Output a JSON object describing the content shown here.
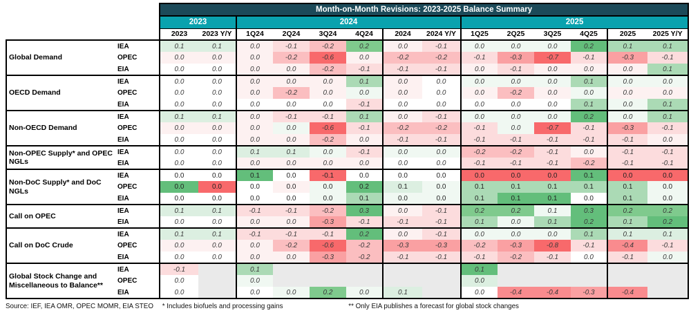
{
  "chart_data": {
    "type": "table",
    "title": "Month-on-Month Revisions: 2023-2025 Balance Summary",
    "year_groups": [
      {
        "label": "2023",
        "span": 2
      },
      {
        "label": "2024",
        "span": 6
      },
      {
        "label": "2025",
        "span": 6
      }
    ],
    "columns": [
      "2023",
      "2023 Y/Y",
      "1Q24",
      "2Q24",
      "3Q24",
      "4Q24",
      "2024",
      "2024 Y/Y",
      "1Q25",
      "2Q25",
      "3Q25",
      "4Q25",
      "2025",
      "2025 Y/Y"
    ],
    "groups": [
      {
        "label": "Global Demand",
        "italic": true,
        "rows": [
          {
            "agency": "IEA",
            "values": [
              "0.1",
              "0.1",
              "0.0",
              "-0.1",
              "-0.2",
              "0.2",
              "0.0",
              "-0.1",
              "0.0",
              "0.0",
              "0.0",
              "0.2",
              "0.1",
              "0.1"
            ],
            "colors": [
              "G1",
              "G1",
              "R0",
              "R1",
              "R2",
              "G3",
              "R0",
              "R1",
              "G0",
              "G0",
              "G0",
              "G4",
              "G2",
              "G2"
            ]
          },
          {
            "agency": "OPEC",
            "values": [
              "0.0",
              "0.0",
              "0.0",
              "-0.2",
              "-0.6",
              "0.0",
              "-0.2",
              "-0.2",
              "-0.1",
              "-0.3",
              "-0.7",
              "-0.1",
              "-0.3",
              "-0.1"
            ],
            "colors": [
              "R0",
              "R0",
              "R0",
              "R2",
              "R5",
              "R0",
              "R2",
              "R2",
              "R1",
              "R3",
              "R5",
              "R1",
              "R3",
              "R1"
            ]
          },
          {
            "agency": "EIA",
            "values": [
              "0.0",
              "0.0",
              "0.0",
              "0.0",
              "-0.2",
              "-0.1",
              "-0.1",
              "-0.1",
              "0.0",
              "-0.1",
              "0.0",
              "0.0",
              "0.0",
              "0.1"
            ],
            "colors": [
              "W",
              "W",
              "R0",
              "R0",
              "R2",
              "R1",
              "R1",
              "R1",
              "R0",
              "R1",
              "R0",
              "R0",
              "R0",
              "G2"
            ]
          }
        ]
      },
      {
        "label": "OECD Demand",
        "italic": true,
        "rows": [
          {
            "agency": "IEA",
            "values": [
              "0.0",
              "0.0",
              "0.0",
              "0.0",
              "0.0",
              "0.1",
              "0.0",
              "0.0",
              "0.0",
              "0.0",
              "0.0",
              "0.1",
              "0.0",
              "0.0"
            ],
            "colors": [
              "W",
              "W",
              "R0",
              "R0",
              "R0",
              "G2",
              "R0",
              "W",
              "G0",
              "G0",
              "G0",
              "G2",
              "G0",
              "G0"
            ]
          },
          {
            "agency": "OPEC",
            "values": [
              "0.0",
              "0.0",
              "0.0",
              "-0.2",
              "0.0",
              "0.0",
              "0.0",
              "0.0",
              "0.0",
              "-0.2",
              "0.0",
              "0.0",
              "0.0",
              "0.0"
            ],
            "colors": [
              "W",
              "W",
              "R0",
              "R2",
              "R0",
              "G0",
              "R0",
              "W",
              "R0",
              "R2",
              "R0",
              "G0",
              "R0",
              "R0"
            ]
          },
          {
            "agency": "EIA",
            "values": [
              "0.0",
              "0.0",
              "0.0",
              "0.0",
              "0.0",
              "-0.1",
              "0.0",
              "0.0",
              "0.0",
              "0.0",
              "0.0",
              "0.1",
              "0.0",
              "0.1"
            ],
            "colors": [
              "W",
              "W",
              "W",
              "W",
              "W",
              "R1",
              "W",
              "W",
              "W",
              "W",
              "W",
              "G2",
              "G0",
              "G2"
            ]
          }
        ]
      },
      {
        "label": "Non-OECD Demand",
        "italic": true,
        "rows": [
          {
            "agency": "IEA",
            "values": [
              "0.1",
              "0.1",
              "0.0",
              "-0.1",
              "-0.1",
              "0.1",
              "0.0",
              "-0.1",
              "0.0",
              "0.0",
              "0.0",
              "0.2",
              "0.0",
              "0.1"
            ],
            "colors": [
              "G1",
              "G1",
              "R0",
              "R1",
              "R1",
              "G2",
              "R0",
              "R1",
              "G0",
              "G0",
              "G0",
              "G4",
              "G0",
              "G2"
            ]
          },
          {
            "agency": "OPEC",
            "values": [
              "0.0",
              "0.0",
              "0.0",
              "0.0",
              "-0.6",
              "-0.1",
              "-0.2",
              "-0.2",
              "-0.1",
              "0.0",
              "-0.7",
              "-0.1",
              "-0.3",
              "-0.1"
            ],
            "colors": [
              "R0",
              "R0",
              "R0",
              "G0",
              "R5",
              "R1",
              "R2",
              "R2",
              "R1",
              "G0",
              "R5",
              "R1",
              "R3",
              "R1"
            ]
          },
          {
            "agency": "EIA",
            "values": [
              "0.0",
              "0.0",
              "0.0",
              "0.0",
              "-0.2",
              "0.0",
              "-0.1",
              "-0.1",
              "-0.1",
              "-0.1",
              "-0.1",
              "-0.1",
              "-0.1",
              "0.0"
            ],
            "colors": [
              "W",
              "W",
              "R0",
              "R0",
              "R2",
              "R0",
              "R1",
              "R1",
              "R1",
              "R1",
              "R1",
              "R1",
              "R1",
              "R0"
            ]
          }
        ]
      },
      {
        "label": "Non-OPEC Supply* and OPEC NGLs",
        "italic": true,
        "rows": [
          {
            "agency": "IEA",
            "values": [
              "0.0",
              "0.0",
              "0.1",
              "0.1",
              "0.0",
              "-0.1",
              "0.0",
              "0.0",
              "-0.2",
              "-0.2",
              "-0.1",
              "0.0",
              "-0.1",
              "-0.1"
            ],
            "colors": [
              "W",
              "W",
              "G1",
              "G1",
              "G0",
              "R1",
              "G0",
              "G0",
              "R2",
              "R2",
              "R1",
              "R0",
              "R1",
              "R1"
            ]
          },
          {
            "agency": "EIA",
            "values": [
              "0.0",
              "0.0",
              "0.0",
              "0.0",
              "0.0",
              "0.0",
              "0.0",
              "0.0",
              "-0.1",
              "-0.1",
              "-0.1",
              "-0.2",
              "-0.1",
              "-0.1"
            ],
            "colors": [
              "W",
              "W",
              "R0",
              "R0",
              "R0",
              "R0",
              "W",
              "W",
              "R1",
              "R1",
              "R1",
              "R2",
              "R1",
              "R1"
            ]
          }
        ]
      },
      {
        "label": "Non-DoC Supply* and DoC NGLs",
        "italic": false,
        "rows": [
          {
            "agency": "IEA",
            "values": [
              "0.0",
              "0.0",
              "0.1",
              "0.0",
              "-0.1",
              "0.0",
              "0.0",
              "0.0",
              "0.0",
              "0.0",
              "0.0",
              "0.1",
              "0.0",
              "0.0"
            ],
            "colors": [
              "W",
              "W",
              "G4",
              "W",
              "R5",
              "W",
              "W",
              "W",
              "R5",
              "R5",
              "R5",
              "G4",
              "R5",
              "R5"
            ]
          },
          {
            "agency": "OPEC",
            "values": [
              "0.0",
              "0.0",
              "0.0",
              "0.0",
              "0.0",
              "0.2",
              "0.1",
              "0.0",
              "0.1",
              "0.1",
              "0.1",
              "0.1",
              "0.1",
              "0.0"
            ],
            "colors": [
              "G4",
              "R5",
              "W",
              "R0",
              "G0",
              "G4",
              "G1",
              "G0",
              "G2",
              "G2",
              "G2",
              "G2",
              "G2",
              "G0"
            ]
          },
          {
            "agency": "EIA",
            "values": [
              "0.0",
              "0.0",
              "0.0",
              "0.0",
              "0.0",
              "0.1",
              "0.0",
              "0.0",
              "0.1",
              "0.1",
              "0.1",
              "0.0",
              "0.1",
              "0.0"
            ],
            "colors": [
              "W",
              "W",
              "W",
              "W",
              "G0",
              "G2",
              "G0",
              "G0",
              "G2",
              "G4",
              "G4",
              "W",
              "G2",
              "G0"
            ]
          }
        ]
      },
      {
        "label": "Call on OPEC",
        "italic": true,
        "rows": [
          {
            "agency": "IEA",
            "values": [
              "0.1",
              "0.1",
              "-0.1",
              "-0.1",
              "-0.2",
              "0.3",
              "0.0",
              "-0.1",
              "0.2",
              "0.2",
              "0.1",
              "0.3",
              "0.2",
              "0.2"
            ],
            "colors": [
              "G1",
              "G1",
              "R1",
              "R1",
              "R2",
              "G4",
              "R0",
              "R1",
              "G3",
              "G3",
              "G0",
              "G4",
              "G3",
              "G3"
            ]
          },
          {
            "agency": "EIA",
            "values": [
              "0.0",
              "0.0",
              "0.0",
              "0.0",
              "-0.3",
              "-0.1",
              "-0.1",
              "-0.1",
              "0.1",
              "0.0",
              "0.1",
              "0.2",
              "0.1",
              "0.2"
            ],
            "colors": [
              "W",
              "W",
              "R0",
              "R0",
              "R3",
              "R1",
              "R1",
              "R1",
              "G2",
              "G0",
              "G2",
              "G4",
              "G2",
              "G4"
            ]
          }
        ]
      },
      {
        "label": "Call on DoC Crude",
        "italic": true,
        "rows": [
          {
            "agency": "IEA",
            "values": [
              "0.1",
              "0.1",
              "-0.1",
              "-0.1",
              "-0.1",
              "0.2",
              "0.0",
              "-0.1",
              "0.0",
              "0.0",
              "0.0",
              "0.1",
              "0.1",
              "0.1"
            ],
            "colors": [
              "G1",
              "G1",
              "R1",
              "R1",
              "R1",
              "G4",
              "R0",
              "R1",
              "G0",
              "G0",
              "G0",
              "G2",
              "G1",
              "G1"
            ]
          },
          {
            "agency": "OPEC",
            "values": [
              "0.0",
              "0.0",
              "0.0",
              "-0.2",
              "-0.6",
              "-0.2",
              "-0.3",
              "-0.3",
              "-0.2",
              "-0.3",
              "-0.8",
              "-0.1",
              "-0.4",
              "-0.1"
            ],
            "colors": [
              "R0",
              "R0",
              "R0",
              "R2",
              "R5",
              "R2",
              "R3",
              "R3",
              "R2",
              "R3",
              "R5",
              "R1",
              "R4",
              "R1"
            ]
          },
          {
            "agency": "EIA",
            "values": [
              "0.0",
              "0.0",
              "0.0",
              "0.0",
              "-0.3",
              "-0.2",
              "-0.1",
              "-0.1",
              "-0.1",
              "-0.2",
              "-0.1",
              "0.0",
              "-0.1",
              "0.0"
            ],
            "colors": [
              "W",
              "W",
              "R0",
              "R0",
              "R3",
              "R2",
              "R1",
              "R1",
              "R1",
              "R2",
              "R1",
              "W",
              "R1",
              "G0"
            ]
          }
        ]
      },
      {
        "label": "Global Stock Change and Miscellaneous to Balance**",
        "italic": true,
        "rows": [
          {
            "agency": "IEA",
            "values": [
              "-0.1",
              "",
              "0.1",
              "",
              "",
              "",
              "",
              "",
              "0.1",
              "",
              "",
              "",
              "",
              ""
            ],
            "colors": [
              "R1",
              "X",
              "G2",
              "X",
              "X",
              "X",
              "X",
              "X",
              "G4",
              "X",
              "X",
              "X",
              "X",
              "X"
            ]
          },
          {
            "agency": "OPEC",
            "values": [
              "0.0",
              "",
              "0.0",
              "",
              "",
              "",
              "",
              "",
              "0.0",
              "",
              "",
              "",
              "",
              ""
            ],
            "colors": [
              "W",
              "X",
              "G0",
              "X",
              "X",
              "X",
              "X",
              "X",
              "G1",
              "X",
              "X",
              "X",
              "X",
              "X"
            ]
          },
          {
            "agency": "EIA",
            "values": [
              "0.0",
              "",
              "0.0",
              "0.0",
              "0.2",
              "0.0",
              "0.1",
              "",
              "0.0",
              "-0.4",
              "-0.4",
              "-0.3",
              "-0.4",
              ""
            ],
            "colors": [
              "W",
              "X",
              "W",
              "G0",
              "G3",
              "G0",
              "G1",
              "X",
              "W",
              "R4",
              "R4",
              "R3",
              "R4",
              "X"
            ]
          }
        ]
      }
    ],
    "footer": {
      "source": "Source: IEF, IEA OMR, OPEC MOMR, EIA STEO",
      "note1": "* Includes biofuels and processing gains",
      "note2": "** Only EIA publishes a forecast for global stock changes"
    }
  },
  "colors": {
    "header_dark": "#1C4A59",
    "header_teal": "#0AA2AE",
    "palette": {
      "R5": "#F8696B",
      "R4": "#F98B8E",
      "R3": "#FAA0A2",
      "R2": "#FBBEC0",
      "R1": "#FCDCDD",
      "R0": "#FDF1F1",
      "W": "#FFFFFF",
      "G0": "#F0F8F2",
      "G1": "#DCEFE1",
      "G2": "#ABDAB5",
      "G3": "#7FCA8D",
      "G4": "#63BE7B",
      "X": "#EAEAEA"
    }
  }
}
